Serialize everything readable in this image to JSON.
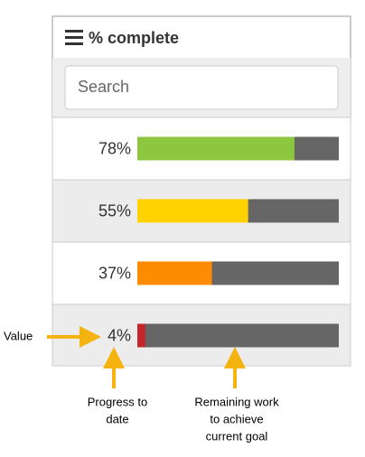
{
  "header": {
    "title": "% complete"
  },
  "search": {
    "placeholder": "Search"
  },
  "xlim": [
    0,
    100
  ],
  "rows": [
    {
      "label": "78%",
      "value": 78,
      "color": "#8dc63f"
    },
    {
      "label": "55%",
      "value": 55,
      "color": "#ffd200"
    },
    {
      "label": "37%",
      "value": 37,
      "color": "#ff8c00"
    },
    {
      "label": "4%",
      "value": 4,
      "color": "#c1272d"
    }
  ],
  "annotations": {
    "value": "Value",
    "progress": [
      "Progress to",
      "date"
    ],
    "remaining": [
      "Remaining work",
      "to achieve",
      "current goal"
    ]
  }
}
